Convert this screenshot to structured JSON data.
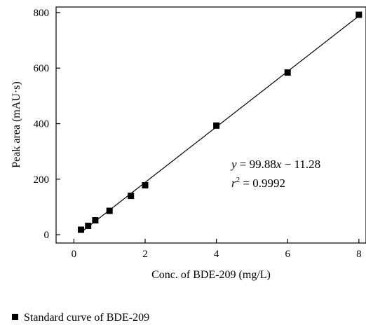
{
  "chart_data": {
    "type": "scatter",
    "xlabel": "Conc. of BDE-209 (mg/L)",
    "ylabel": "Peak area (mAU·s)",
    "xlim": [
      -0.5,
      8.2
    ],
    "ylim": [
      -30,
      820
    ],
    "x_ticks": [
      0,
      2,
      4,
      6,
      8
    ],
    "y_ticks": [
      0,
      200,
      400,
      600,
      800
    ],
    "x_tick_labels": [
      "0",
      "2",
      "4",
      "6",
      "8"
    ],
    "y_tick_labels": [
      "0",
      "200",
      "400",
      "600",
      "800"
    ],
    "grid": false,
    "legend_position": "bottom-left",
    "series": [
      {
        "name": "Standard curve of BDE-209",
        "marker": "square",
        "color": "#000000",
        "x": [
          0.2,
          0.4,
          0.6,
          1.0,
          1.6,
          2.0,
          4.0,
          6.0,
          8.0
        ],
        "y": [
          18,
          32,
          52,
          86,
          140,
          178,
          393,
          584,
          792
        ]
      }
    ],
    "fit_line": {
      "slope": 99.88,
      "intercept": -11.28,
      "x_range": [
        0.2,
        8.0
      ]
    },
    "annotations": {
      "equation": {
        "y_var": "y",
        "equals": " = 99.88",
        "x_var": "x",
        "rest": " − 11.28"
      },
      "r2": {
        "r_var": "r",
        "exp": "2",
        "value": " = 0.9992"
      }
    }
  }
}
